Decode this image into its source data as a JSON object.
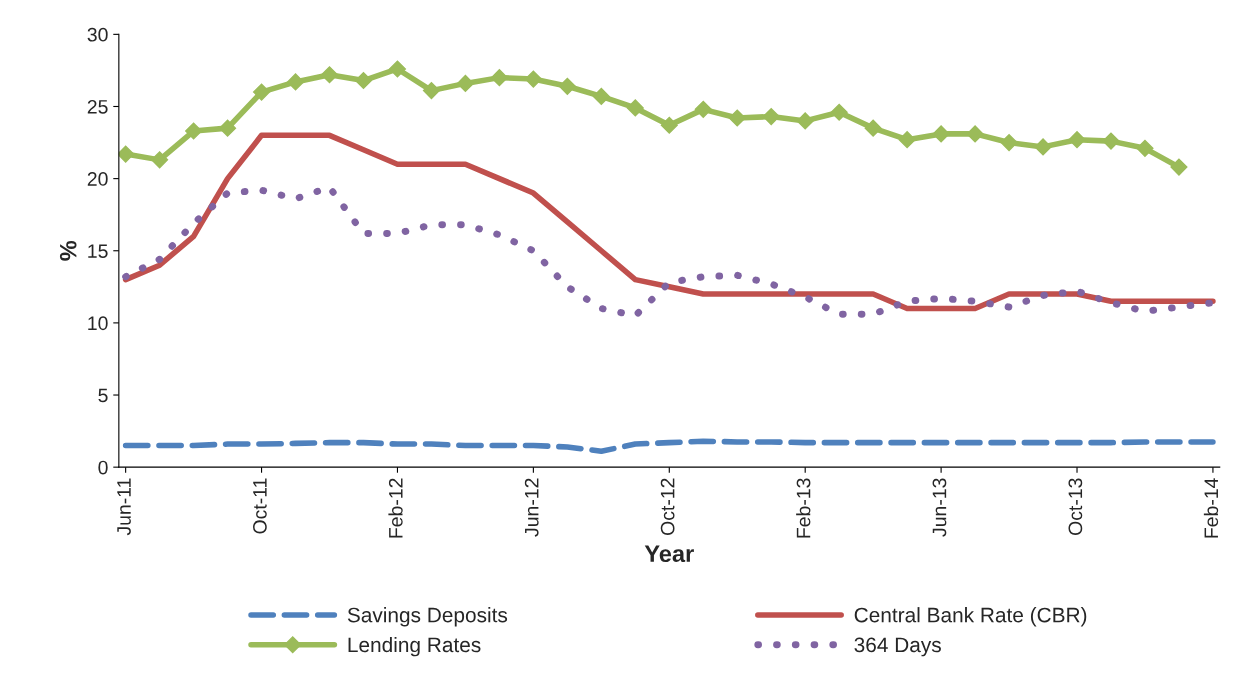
{
  "chart_data": {
    "type": "line",
    "xlabel": "Year",
    "ylabel": "%",
    "categories": [
      "Jun-11",
      null,
      null,
      null,
      "Oct-11",
      null,
      null,
      null,
      "Feb-12",
      null,
      null,
      null,
      "Jun-12",
      null,
      null,
      null,
      "Oct-12",
      null,
      null,
      null,
      "Feb-13",
      null,
      null,
      null,
      "Jun-13",
      null,
      null,
      null,
      "Oct-13",
      null,
      null,
      null,
      "Feb-14"
    ],
    "series": [
      {
        "name": "Savings Deposits",
        "color": "#4f81bd",
        "line_style": "dashed",
        "marker": "none",
        "values": [
          1.5,
          1.5,
          1.5,
          1.6,
          1.6,
          1.65,
          1.7,
          1.7,
          1.6,
          1.6,
          1.5,
          1.5,
          1.5,
          1.4,
          1.1,
          1.6,
          1.7,
          1.8,
          1.75,
          1.75,
          1.7,
          1.7,
          1.7,
          1.7,
          1.7,
          1.7,
          1.7,
          1.7,
          1.7,
          1.7,
          1.75,
          1.75,
          1.75
        ]
      },
      {
        "name": "Central Bank Rate (CBR)",
        "color": "#c0504d",
        "line_style": "solid",
        "marker": "none",
        "values": [
          13,
          14,
          16,
          20,
          23,
          23,
          23,
          22,
          21,
          21,
          21,
          20,
          19,
          17,
          15,
          13,
          12.5,
          12,
          12,
          12,
          12,
          12,
          12,
          11,
          11,
          11,
          12,
          12,
          12,
          11.5,
          11.5,
          11.5,
          11.5
        ]
      },
      {
        "name": "Lending Rates",
        "color": "#9bbb59",
        "line_style": "solid",
        "marker": "diamond",
        "values": [
          21.7,
          21.3,
          23.3,
          23.5,
          26.0,
          26.7,
          27.2,
          26.8,
          27.6,
          26.1,
          26.6,
          27.0,
          26.9,
          26.4,
          25.7,
          24.9,
          23.7,
          24.8,
          24.2,
          24.3,
          24.0,
          24.6,
          23.5,
          22.7,
          23.1,
          23.1,
          22.5,
          22.2,
          22.7,
          22.6,
          22.1,
          20.8,
          null
        ]
      },
      {
        "name": "364 Days",
        "color": "#8064a2",
        "line_style": "dotted",
        "marker": "none",
        "values": [
          13.2,
          14.4,
          16.9,
          19.0,
          19.2,
          18.6,
          19.4,
          16.2,
          16.2,
          16.8,
          16.8,
          16.1,
          15.0,
          12.5,
          11.0,
          10.5,
          12.8,
          13.2,
          13.3,
          12.7,
          11.8,
          10.6,
          10.6,
          11.5,
          11.7,
          11.5,
          11.1,
          11.9,
          12.2,
          11.4,
          10.8,
          11.1,
          11.4
        ]
      }
    ],
    "ylim": [
      0,
      30
    ],
    "yticks": [
      0,
      5,
      10,
      15,
      20,
      25,
      30
    ],
    "grid": false,
    "legend": "bottom"
  }
}
